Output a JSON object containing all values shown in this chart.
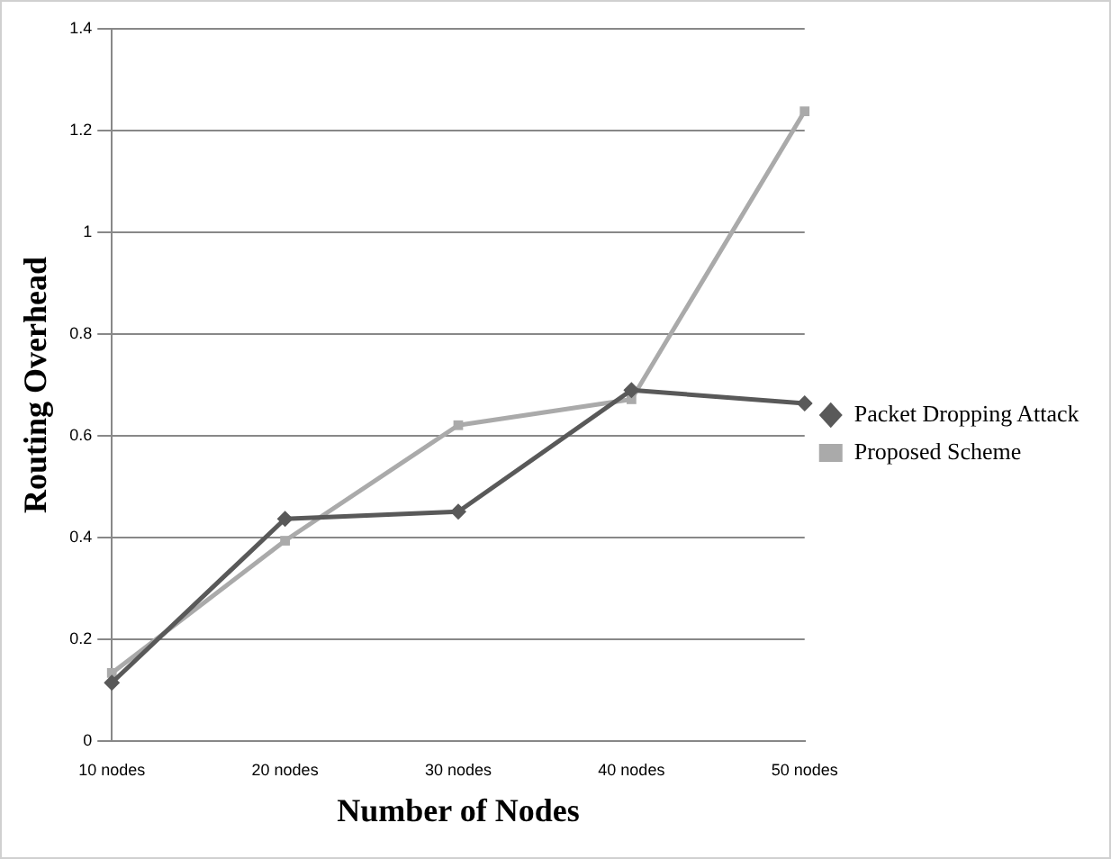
{
  "chart_data": {
    "type": "line",
    "xlabel": "Number of Nodes",
    "ylabel": "Routing Overhead",
    "categories": [
      "10 nodes",
      "20 nodes",
      "30 nodes",
      "40 nodes",
      "50 nodes"
    ],
    "series": [
      {
        "name": "Packet Dropping Attack",
        "color": "#595959",
        "marker": "diamond",
        "values": [
          0.115,
          0.437,
          0.451,
          0.69,
          0.664
        ]
      },
      {
        "name": "Proposed Scheme",
        "color": "#aaaaaa",
        "marker": "square",
        "values": [
          0.134,
          0.394,
          0.621,
          0.672,
          1.238
        ]
      }
    ],
    "ylim": [
      0,
      1.4
    ],
    "yticks": [
      0,
      0.2,
      0.4,
      0.6,
      0.8,
      1,
      1.2,
      1.4
    ],
    "grid": "y",
    "legend": "right",
    "line_style": "solid"
  }
}
